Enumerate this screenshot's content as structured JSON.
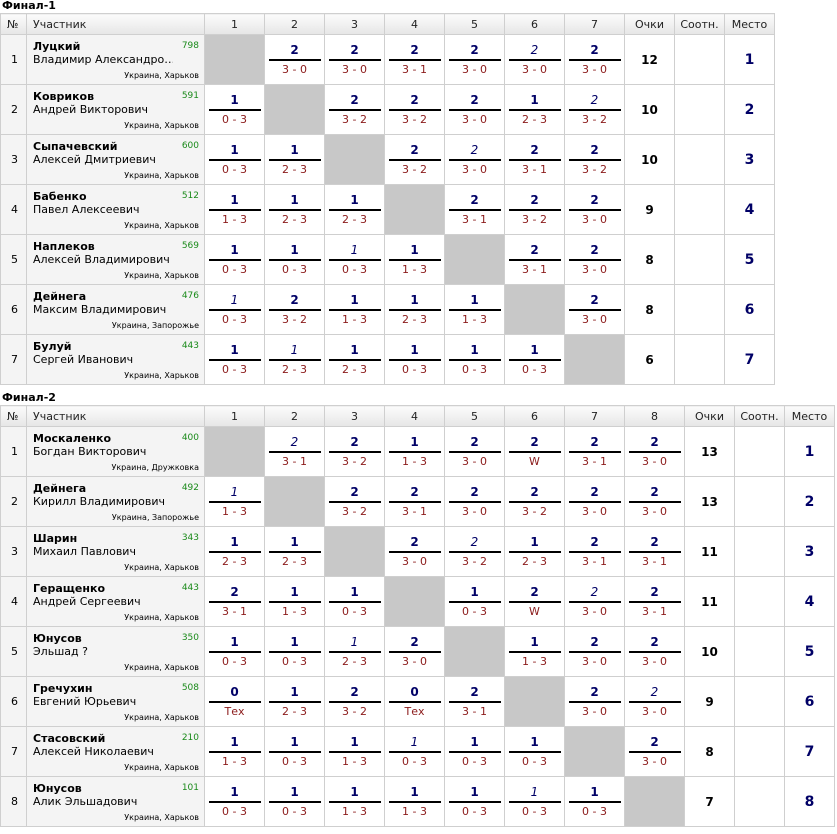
{
  "headers": {
    "num": "№",
    "player": "Участник",
    "points": "Очки",
    "ratio": "Соотн.",
    "place": "Место"
  },
  "tables": [
    {
      "title": "Финал-1",
      "columns": [
        "1",
        "2",
        "3",
        "4",
        "5",
        "6",
        "7"
      ],
      "players": [
        {
          "num": "1",
          "name": "Луцкий",
          "full": "Владимир Александро…",
          "rating": "798",
          "city": "Украина, Харьков",
          "points": "12",
          "ratio": "",
          "place": "1",
          "results": [
            null,
            {
              "p": "2",
              "s": "3 - 0"
            },
            {
              "p": "2",
              "s": "3 - 0"
            },
            {
              "p": "2",
              "s": "3 - 1"
            },
            {
              "p": "2",
              "s": "3 - 0"
            },
            {
              "p": "2",
              "s": "3 - 0",
              "i": true
            },
            {
              "p": "2",
              "s": "3 - 0"
            }
          ]
        },
        {
          "num": "2",
          "name": "Ковриков",
          "full": "Андрей Викторович",
          "rating": "591",
          "city": "Украина, Харьков",
          "points": "10",
          "ratio": "",
          "place": "2",
          "results": [
            {
              "p": "1",
              "s": "0 - 3"
            },
            null,
            {
              "p": "2",
              "s": "3 - 2"
            },
            {
              "p": "2",
              "s": "3 - 2"
            },
            {
              "p": "2",
              "s": "3 - 0"
            },
            {
              "p": "1",
              "s": "2 - 3"
            },
            {
              "p": "2",
              "s": "3 - 2",
              "i": true
            }
          ]
        },
        {
          "num": "3",
          "name": "Сыпачевский",
          "full": "Алексей Дмитриевич",
          "rating": "600",
          "city": "Украина, Харьков",
          "points": "10",
          "ratio": "",
          "place": "3",
          "results": [
            {
              "p": "1",
              "s": "0 - 3"
            },
            {
              "p": "1",
              "s": "2 - 3"
            },
            null,
            {
              "p": "2",
              "s": "3 - 2"
            },
            {
              "p": "2",
              "s": "3 - 0",
              "i": true
            },
            {
              "p": "2",
              "s": "3 - 1"
            },
            {
              "p": "2",
              "s": "3 - 2"
            }
          ]
        },
        {
          "num": "4",
          "name": "Бабенко",
          "full": "Павел Алексеевич",
          "rating": "512",
          "city": "Украина, Харьков",
          "points": "9",
          "ratio": "",
          "place": "4",
          "results": [
            {
              "p": "1",
              "s": "1 - 3"
            },
            {
              "p": "1",
              "s": "2 - 3"
            },
            {
              "p": "1",
              "s": "2 - 3"
            },
            null,
            {
              "p": "2",
              "s": "3 - 1"
            },
            {
              "p": "2",
              "s": "3 - 2"
            },
            {
              "p": "2",
              "s": "3 - 0"
            }
          ]
        },
        {
          "num": "5",
          "name": "Наплеков",
          "full": "Алексей Владимирович",
          "rating": "569",
          "city": "Украина, Харьков",
          "points": "8",
          "ratio": "",
          "place": "5",
          "results": [
            {
              "p": "1",
              "s": "0 - 3"
            },
            {
              "p": "1",
              "s": "0 - 3"
            },
            {
              "p": "1",
              "s": "0 - 3",
              "i": true
            },
            {
              "p": "1",
              "s": "1 - 3"
            },
            null,
            {
              "p": "2",
              "s": "3 - 1"
            },
            {
              "p": "2",
              "s": "3 - 0"
            }
          ]
        },
        {
          "num": "6",
          "name": "Дейнега",
          "full": "Максим Владимирович",
          "rating": "476",
          "city": "Украина, Запорожье",
          "points": "8",
          "ratio": "",
          "place": "6",
          "results": [
            {
              "p": "1",
              "s": "0 - 3",
              "i": true
            },
            {
              "p": "2",
              "s": "3 - 2"
            },
            {
              "p": "1",
              "s": "1 - 3"
            },
            {
              "p": "1",
              "s": "2 - 3"
            },
            {
              "p": "1",
              "s": "1 - 3"
            },
            null,
            {
              "p": "2",
              "s": "3 - 0"
            }
          ]
        },
        {
          "num": "7",
          "name": "Булуй",
          "full": "Сергей Иванович",
          "rating": "443",
          "city": "Украина, Харьков",
          "points": "6",
          "ratio": "",
          "place": "7",
          "results": [
            {
              "p": "1",
              "s": "0 - 3"
            },
            {
              "p": "1",
              "s": "2 - 3",
              "i": true
            },
            {
              "p": "1",
              "s": "2 - 3"
            },
            {
              "p": "1",
              "s": "0 - 3"
            },
            {
              "p": "1",
              "s": "0 - 3"
            },
            {
              "p": "1",
              "s": "0 - 3"
            },
            null
          ]
        }
      ]
    },
    {
      "title": "Финал-2",
      "columns": [
        "1",
        "2",
        "3",
        "4",
        "5",
        "6",
        "7",
        "8"
      ],
      "players": [
        {
          "num": "1",
          "name": "Москаленко",
          "full": "Богдан Викторович",
          "rating": "400",
          "city": "Украина, Дружковка",
          "points": "13",
          "ratio": "",
          "place": "1",
          "results": [
            null,
            {
              "p": "2",
              "s": "3 - 1",
              "i": true
            },
            {
              "p": "2",
              "s": "3 - 2"
            },
            {
              "p": "1",
              "s": "1 - 3"
            },
            {
              "p": "2",
              "s": "3 - 0"
            },
            {
              "p": "2",
              "s": "W"
            },
            {
              "p": "2",
              "s": "3 - 1"
            },
            {
              "p": "2",
              "s": "3 - 0"
            }
          ]
        },
        {
          "num": "2",
          "name": "Дейнега",
          "full": "Кирилл Владимирович",
          "rating": "492",
          "city": "Украина, Запорожье",
          "points": "13",
          "ratio": "",
          "place": "2",
          "results": [
            {
              "p": "1",
              "s": "1 - 3",
              "i": true
            },
            null,
            {
              "p": "2",
              "s": "3 - 2"
            },
            {
              "p": "2",
              "s": "3 - 1"
            },
            {
              "p": "2",
              "s": "3 - 0"
            },
            {
              "p": "2",
              "s": "3 - 2"
            },
            {
              "p": "2",
              "s": "3 - 0"
            },
            {
              "p": "2",
              "s": "3 - 0"
            }
          ]
        },
        {
          "num": "3",
          "name": "Шарин",
          "full": "Михаил Павлович",
          "rating": "343",
          "city": "Украина, Харьков",
          "points": "11",
          "ratio": "",
          "place": "3",
          "results": [
            {
              "p": "1",
              "s": "2 - 3"
            },
            {
              "p": "1",
              "s": "2 - 3"
            },
            null,
            {
              "p": "2",
              "s": "3 - 0"
            },
            {
              "p": "2",
              "s": "3 - 2",
              "i": true
            },
            {
              "p": "1",
              "s": "2 - 3"
            },
            {
              "p": "2",
              "s": "3 - 1"
            },
            {
              "p": "2",
              "s": "3 - 1"
            }
          ]
        },
        {
          "num": "4",
          "name": "Геращенко",
          "full": "Андрей Сергеевич",
          "rating": "443",
          "city": "Украина, Харьков",
          "points": "11",
          "ratio": "",
          "place": "4",
          "results": [
            {
              "p": "2",
              "s": "3 - 1"
            },
            {
              "p": "1",
              "s": "1 - 3"
            },
            {
              "p": "1",
              "s": "0 - 3"
            },
            null,
            {
              "p": "1",
              "s": "0 - 3"
            },
            {
              "p": "2",
              "s": "W"
            },
            {
              "p": "2",
              "s": "3 - 0",
              "i": true
            },
            {
              "p": "2",
              "s": "3 - 1"
            }
          ]
        },
        {
          "num": "5",
          "name": "Юнусов",
          "full": "Эльшад ?",
          "rating": "350",
          "city": "Украина, Харьков",
          "points": "10",
          "ratio": "",
          "place": "5",
          "results": [
            {
              "p": "1",
              "s": "0 - 3"
            },
            {
              "p": "1",
              "s": "0 - 3"
            },
            {
              "p": "1",
              "s": "2 - 3",
              "i": true
            },
            {
              "p": "2",
              "s": "3 - 0"
            },
            null,
            {
              "p": "1",
              "s": "1 - 3"
            },
            {
              "p": "2",
              "s": "3 - 0"
            },
            {
              "p": "2",
              "s": "3 - 0"
            }
          ]
        },
        {
          "num": "6",
          "name": "Гречухин",
          "full": "Евгений Юрьевич",
          "rating": "508",
          "city": "Украина, Харьков",
          "points": "9",
          "ratio": "",
          "place": "6",
          "results": [
            {
              "p": "0",
              "s": "Тех"
            },
            {
              "p": "1",
              "s": "2 - 3"
            },
            {
              "p": "2",
              "s": "3 - 2"
            },
            {
              "p": "0",
              "s": "Тех"
            },
            {
              "p": "2",
              "s": "3 - 1"
            },
            null,
            {
              "p": "2",
              "s": "3 - 0"
            },
            {
              "p": "2",
              "s": "3 - 0",
              "i": true
            }
          ]
        },
        {
          "num": "7",
          "name": "Стасовский",
          "full": "Алексей Николаевич",
          "rating": "210",
          "city": "Украина, Харьков",
          "points": "8",
          "ratio": "",
          "place": "7",
          "results": [
            {
              "p": "1",
              "s": "1 - 3"
            },
            {
              "p": "1",
              "s": "0 - 3"
            },
            {
              "p": "1",
              "s": "1 - 3"
            },
            {
              "p": "1",
              "s": "0 - 3",
              "i": true
            },
            {
              "p": "1",
              "s": "0 - 3"
            },
            {
              "p": "1",
              "s": "0 - 3"
            },
            null,
            {
              "p": "2",
              "s": "3 - 0"
            }
          ]
        },
        {
          "num": "8",
          "name": "Юнусов",
          "full": "Алик Эльшадович",
          "rating": "101",
          "city": "Украина, Харьков",
          "points": "7",
          "ratio": "",
          "place": "8",
          "results": [
            {
              "p": "1",
              "s": "0 - 3"
            },
            {
              "p": "1",
              "s": "0 - 3"
            },
            {
              "p": "1",
              "s": "1 - 3"
            },
            {
              "p": "1",
              "s": "1 - 3"
            },
            {
              "p": "1",
              "s": "0 - 3"
            },
            {
              "p": "1",
              "s": "0 - 3",
              "i": true
            },
            {
              "p": "1",
              "s": "0 - 3"
            },
            null
          ]
        }
      ]
    }
  ]
}
